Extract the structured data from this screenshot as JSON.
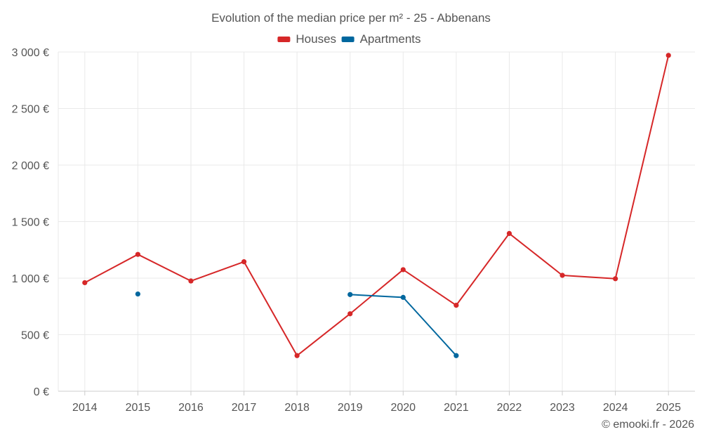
{
  "chart_data": {
    "type": "line",
    "title": "Evolution of the median price per m² - 25 - Abbenans",
    "xlabel": "",
    "ylabel": "",
    "categories": [
      "2014",
      "2015",
      "2016",
      "2017",
      "2018",
      "2019",
      "2020",
      "2021",
      "2022",
      "2023",
      "2024",
      "2025"
    ],
    "ylim": [
      0,
      3000
    ],
    "yticks": [
      0,
      500,
      1000,
      1500,
      2000,
      2500,
      3000
    ],
    "ytick_labels": [
      "0 €",
      "500 €",
      "1 000 €",
      "1 500 €",
      "2 000 €",
      "2 500 €",
      "3 000 €"
    ],
    "grid": true,
    "legend_position": "top-center",
    "series": [
      {
        "name": "Houses",
        "color": "#d62728",
        "values": [
          960,
          1210,
          975,
          1145,
          315,
          685,
          1075,
          760,
          1395,
          1025,
          995,
          2970
        ]
      },
      {
        "name": "Apartments",
        "color": "#00679e",
        "values": [
          null,
          860,
          null,
          null,
          null,
          855,
          830,
          315,
          null,
          null,
          null,
          null
        ]
      }
    ]
  },
  "credit": "© emooki.fr - 2026"
}
